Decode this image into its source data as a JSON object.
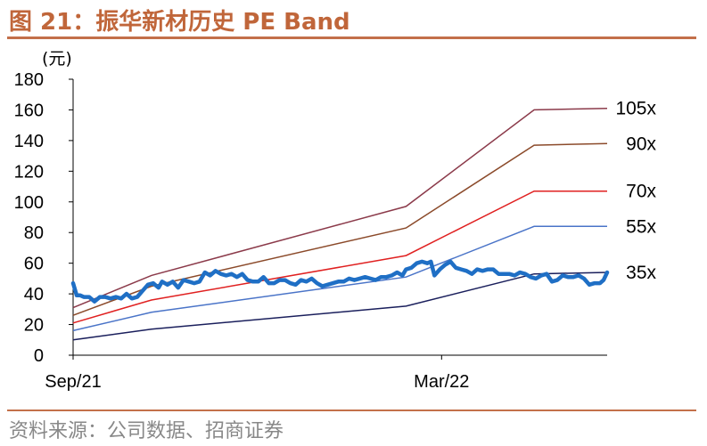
{
  "header": {
    "title": "图 21：振华新材历史 PE Band"
  },
  "footer": {
    "source": "资料来源：公司数据、招商证券"
  },
  "chart_data": {
    "type": "line",
    "title": "图 21：振华新材历史 PE Band",
    "unit_label": "(元)",
    "ylabel": "(元)",
    "xlabel": "",
    "ylim": [
      0,
      180
    ],
    "yticks": [
      0,
      20,
      40,
      60,
      80,
      100,
      120,
      140,
      160,
      180
    ],
    "ytick_labels": [
      "0",
      "20",
      "40",
      "60",
      "80",
      "100",
      "120",
      "140",
      "160",
      "180"
    ],
    "xlim": [
      0,
      300
    ],
    "xticks": [
      0,
      207
    ],
    "xtick_labels": [
      "Sep/21",
      "Mar/22"
    ],
    "grid": false,
    "legend": "band labels at right end of each line",
    "bands": [
      {
        "name": "105x",
        "color": "#8b3a4a",
        "x": [
          0,
          44,
          187,
          259,
          300
        ],
        "values": [
          31,
          52,
          97,
          160,
          161
        ]
      },
      {
        "name": "90x",
        "color": "#8b4a2a",
        "x": [
          0,
          44,
          187,
          259,
          300
        ],
        "values": [
          26,
          45,
          83,
          137,
          138
        ]
      },
      {
        "name": "70x",
        "color": "#e02020",
        "x": [
          0,
          44,
          187,
          259,
          300
        ],
        "values": [
          21,
          36,
          65,
          107,
          107
        ]
      },
      {
        "name": "55x",
        "color": "#4a74c8",
        "x": [
          0,
          44,
          187,
          259,
          300
        ],
        "values": [
          16,
          28,
          51,
          84,
          84
        ]
      },
      {
        "name": "35x",
        "color": "#1a1f5c",
        "x": [
          0,
          44,
          187,
          259,
          300
        ],
        "values": [
          10,
          17,
          32,
          53,
          54
        ]
      }
    ],
    "price_series": {
      "color": "#1f6fc5",
      "x": [
        0,
        2,
        4,
        6,
        9,
        12,
        15,
        18,
        21,
        24,
        27,
        30,
        33,
        36,
        39,
        42,
        45,
        48,
        50,
        53,
        56,
        59,
        62,
        65,
        68,
        71,
        74,
        77,
        80,
        83,
        86,
        89,
        92,
        95,
        98,
        101,
        104,
        107,
        110,
        113,
        116,
        119,
        122,
        125,
        128,
        131,
        134,
        137,
        140,
        143,
        146,
        149,
        152,
        155,
        158,
        161,
        164,
        167,
        170,
        173,
        176,
        179,
        182,
        185,
        187,
        190,
        193,
        196,
        199,
        201,
        203,
        206,
        209,
        212,
        215,
        218,
        221,
        224,
        227,
        230,
        233,
        236,
        239,
        242,
        245,
        248,
        251,
        254,
        257,
        260,
        263,
        266,
        269,
        272,
        275,
        278,
        281,
        284,
        287,
        290,
        293,
        296,
        298,
        300
      ],
      "values": [
        47,
        39,
        39,
        38,
        38,
        35,
        38,
        38,
        37,
        38,
        37,
        40,
        37,
        38,
        42,
        46,
        47,
        44,
        48,
        46,
        48,
        44,
        49,
        48,
        47,
        48,
        54,
        52,
        55,
        53,
        52,
        53,
        51,
        53,
        49,
        48,
        48,
        51,
        47,
        47,
        49,
        49,
        47,
        46,
        49,
        48,
        50,
        47,
        45,
        46,
        47,
        48,
        48,
        50,
        49,
        50,
        51,
        50,
        49,
        51,
        51,
        52,
        54,
        52,
        56,
        57,
        60,
        61,
        60,
        61,
        52,
        56,
        59,
        61,
        57,
        56,
        55,
        53,
        56,
        55,
        56,
        56,
        53,
        53,
        53,
        52,
        54,
        53,
        51,
        50,
        52,
        53,
        48,
        49,
        52,
        51,
        51,
        52,
        50,
        46,
        47,
        47,
        49,
        54
      ]
    }
  }
}
